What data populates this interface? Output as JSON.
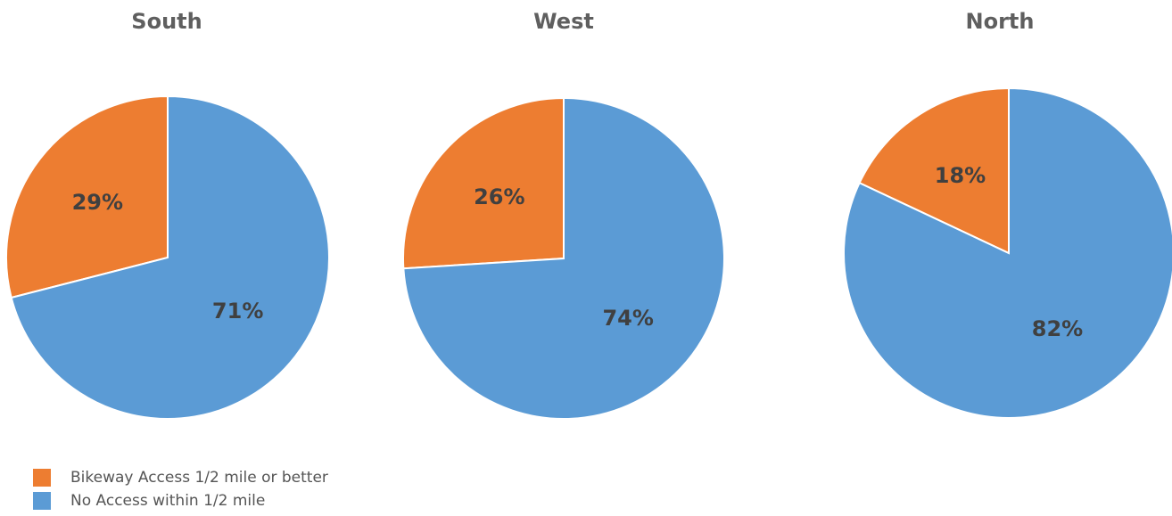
{
  "colors": {
    "bikeway": "#ED7D31",
    "no_access": "#5B9BD5",
    "title_text": "#5F5F5F",
    "label_text": "#404040"
  },
  "legend": [
    {
      "label": "Bikeway Access 1/2 mile or better",
      "color": "#ED7D31"
    },
    {
      "label": "No Access within 1/2 mile",
      "color": "#5B9BD5"
    }
  ],
  "chart_data": [
    {
      "type": "pie",
      "title": "South",
      "slices": [
        {
          "label": "Bikeway Access 1/2 mile or better",
          "value": 29,
          "display": "29%",
          "color": "#ED7D31"
        },
        {
          "label": "No Access within 1/2 mile",
          "value": 71,
          "display": "71%",
          "color": "#5B9BD5"
        }
      ]
    },
    {
      "type": "pie",
      "title": "West",
      "slices": [
        {
          "label": "Bikeway Access 1/2 mile or better",
          "value": 26,
          "display": "26%",
          "color": "#ED7D31"
        },
        {
          "label": "No Access within 1/2 mile",
          "value": 74,
          "display": "74%",
          "color": "#5B9BD5"
        }
      ]
    },
    {
      "type": "pie",
      "title": "North",
      "slices": [
        {
          "label": "Bikeway Access 1/2 mile or better",
          "value": 18,
          "display": "18%",
          "color": "#ED7D31"
        },
        {
          "label": "No Access within 1/2 mile",
          "value": 82,
          "display": "82%",
          "color": "#5B9BD5"
        }
      ]
    }
  ]
}
